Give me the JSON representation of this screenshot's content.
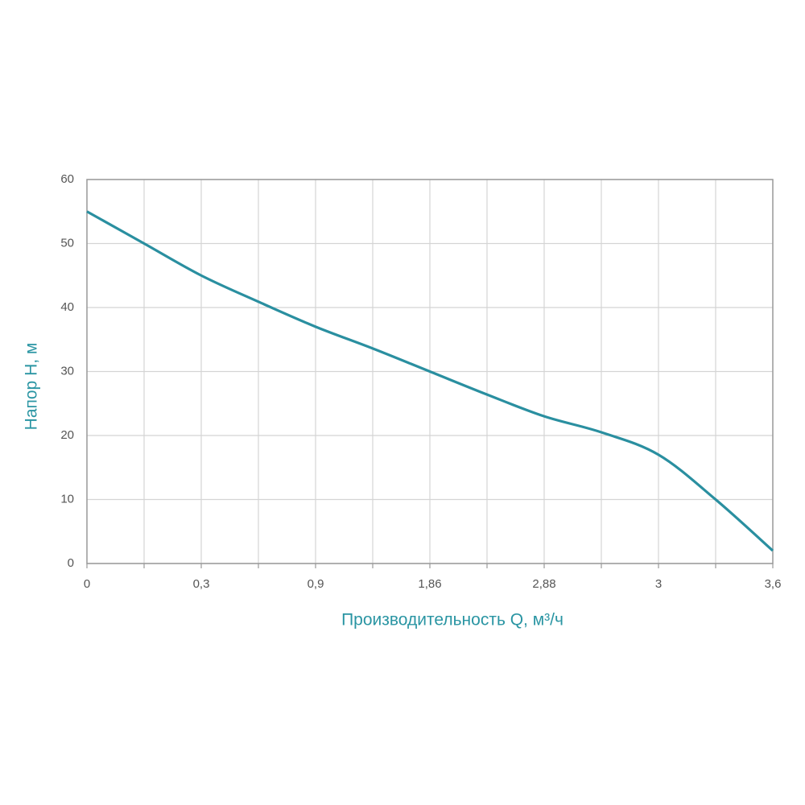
{
  "chart_data": {
    "type": "line",
    "x_label": "Производительность Q, м³/ч",
    "y_label": "Напор H, м",
    "categories": [
      "0",
      null,
      "0,3",
      null,
      "0,9",
      null,
      "1,86",
      null,
      "2,88",
      null,
      "3",
      null,
      "3,6"
    ],
    "series": [
      {
        "color": "#2a8fa0",
        "values": [
          55,
          50,
          45,
          40.9,
          37,
          33.6,
          30,
          26.4,
          23,
          20.5,
          17,
          10,
          2
        ]
      }
    ],
    "ylim": [
      0,
      60
    ],
    "yticks": [
      0,
      10,
      20,
      30,
      40,
      50,
      60
    ],
    "grid": true
  }
}
